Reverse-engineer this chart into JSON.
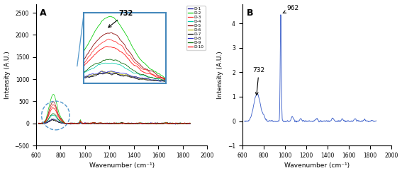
{
  "xlim": [
    600,
    2000
  ],
  "ylim_A": [
    -500,
    2700
  ],
  "ylim_B": [
    -1,
    4.8
  ],
  "xlabel": "Wavenumber (cm⁻¹)",
  "ylabel_A": "Intensity (A.U.)",
  "ylabel_B": "Intensity (A.U.)",
  "label_A": "A",
  "label_B": "B",
  "line_colors": [
    "#00008B",
    "#00CC00",
    "#FF3333",
    "#00CCAA",
    "#880000",
    "#BBBB00",
    "#111111",
    "#3333CC",
    "#006600",
    "#FF0000"
  ],
  "legend_labels": [
    "D-1",
    "D-2",
    "D-3",
    "D-4",
    "D-5",
    "D-6",
    "D-7",
    "D-8",
    "D-9",
    "D-10"
  ],
  "fep_peak": 732,
  "raman_peak": 962,
  "background_color": "#ffffff",
  "inset_color": "#4488BB"
}
